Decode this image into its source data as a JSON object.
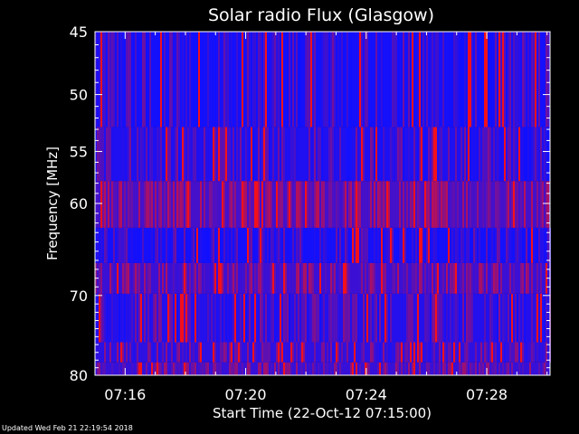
{
  "chart_data": {
    "type": "heatmap",
    "title": "Solar radio Flux (Glasgow)",
    "xlabel": "Start Time (22-Oct-12 07:15:00)",
    "ylabel": "Frequency [MHz]",
    "x_tick_labels": [
      "07:16",
      "07:20",
      "07:24",
      "07:28"
    ],
    "x_ticks_minutes": [
      1,
      5,
      9,
      13
    ],
    "xlim_minutes": [
      0,
      15.1
    ],
    "y_ticks": [
      45,
      50,
      55,
      60,
      70,
      80
    ],
    "ylim": [
      45,
      80
    ],
    "y_scale": "log",
    "colors": {
      "low": "#0010ff",
      "high": "#ff1010",
      "background": "#000000",
      "axis": "#ffffff"
    },
    "bands": [
      {
        "fmin": 45.0,
        "fmax": 52.8,
        "level": 0.05
      },
      {
        "fmin": 52.8,
        "fmax": 57.8,
        "level": 0.15
      },
      {
        "fmin": 57.8,
        "fmax": 62.5,
        "level": 0.55
      },
      {
        "fmin": 62.5,
        "fmax": 66.3,
        "level": 0.05
      },
      {
        "fmin": 66.3,
        "fmax": 69.8,
        "level": 0.45
      },
      {
        "fmin": 69.8,
        "fmax": 75.7,
        "level": 0.2
      },
      {
        "fmin": 75.7,
        "fmax": 78.3,
        "level": 0.3
      },
      {
        "fmin": 78.3,
        "fmax": 80.0,
        "level": 0.4
      }
    ]
  },
  "footer": "Updated Wed Feb 21 22:19:54 2018"
}
